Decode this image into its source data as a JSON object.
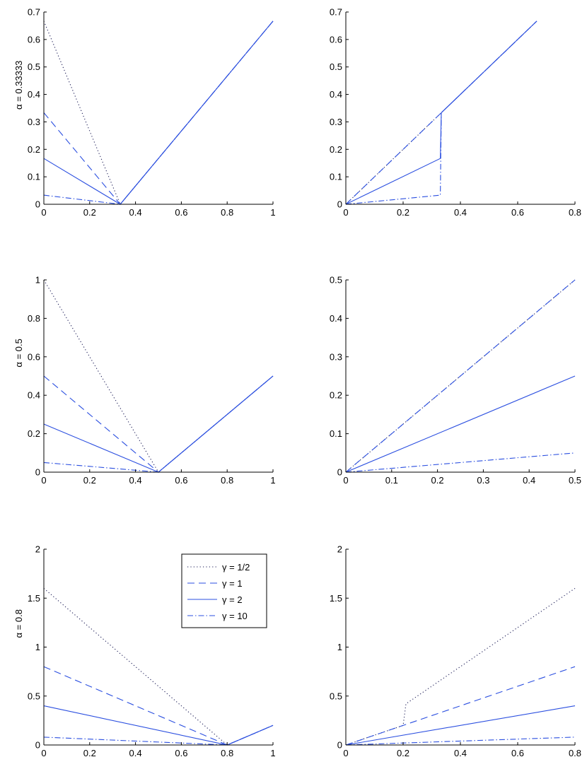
{
  "chart_data": [
    {
      "type": "line",
      "row_label": "α = 0.33333",
      "xlim": [
        0,
        1
      ],
      "ylim": [
        0,
        0.7
      ],
      "xticks": [
        "0",
        "0.2",
        "0.4",
        "0.6",
        "0.8",
        "1"
      ],
      "yticks": [
        "0",
        "0.1",
        "0.2",
        "0.3",
        "0.4",
        "0.5",
        "0.6",
        "0.7"
      ],
      "series": [
        {
          "name": "γ = 1/2",
          "style": "dotted",
          "points": [
            [
              0,
              0.6667
            ],
            [
              0.3333,
              0
            ],
            [
              1,
              0.6667
            ]
          ]
        },
        {
          "name": "γ = 1",
          "style": "dashed",
          "points": [
            [
              0,
              0.3333
            ],
            [
              0.3333,
              0
            ],
            [
              1,
              0.6667
            ]
          ]
        },
        {
          "name": "γ = 2",
          "style": "solid",
          "points": [
            [
              0,
              0.1667
            ],
            [
              0.3333,
              0
            ],
            [
              1,
              0.6667
            ]
          ]
        },
        {
          "name": "γ = 10",
          "style": "dashdot",
          "points": [
            [
              0,
              0.0333
            ],
            [
              0.3333,
              0
            ],
            [
              1,
              0.6667
            ]
          ]
        }
      ]
    },
    {
      "type": "line",
      "xlim": [
        0,
        0.8
      ],
      "ylim": [
        0,
        0.7
      ],
      "xticks": [
        "0",
        "0.2",
        "0.4",
        "0.6",
        "0.8"
      ],
      "yticks": [
        "0",
        "0.1",
        "0.2",
        "0.3",
        "0.4",
        "0.5",
        "0.6",
        "0.7"
      ],
      "series": [
        {
          "name": "γ = 1/2",
          "style": "dotted",
          "points": [
            [
              0,
              0
            ],
            [
              0.3333,
              0.3333
            ],
            [
              0.6667,
              0.6667
            ]
          ]
        },
        {
          "name": "γ = 1",
          "style": "dashed",
          "points": [
            [
              0,
              0
            ],
            [
              0.3333,
              0.3333
            ],
            [
              0.6667,
              0.6667
            ]
          ]
        },
        {
          "name": "γ = 2",
          "style": "solid",
          "points": [
            [
              0,
              0
            ],
            [
              0.33,
              0.1667
            ],
            [
              0.3333,
              0.3333
            ],
            [
              0.6667,
              0.6667
            ]
          ]
        },
        {
          "name": "γ = 10",
          "style": "dashdot",
          "points": [
            [
              0,
              0
            ],
            [
              0.33,
              0.0333
            ],
            [
              0.3333,
              0.3333
            ],
            [
              0.6667,
              0.6667
            ]
          ]
        }
      ]
    },
    {
      "type": "line",
      "row_label": "α = 0.5",
      "xlim": [
        0,
        1
      ],
      "ylim": [
        0,
        1
      ],
      "xticks": [
        "0",
        "0.2",
        "0.4",
        "0.6",
        "0.8",
        "1"
      ],
      "yticks": [
        "0",
        "0.2",
        "0.4",
        "0.6",
        "0.8",
        "1"
      ],
      "series": [
        {
          "name": "γ = 1/2",
          "style": "dotted",
          "points": [
            [
              0,
              1
            ],
            [
              0.5,
              0
            ],
            [
              1,
              0.5
            ]
          ]
        },
        {
          "name": "γ = 1",
          "style": "dashed",
          "points": [
            [
              0,
              0.5
            ],
            [
              0.5,
              0
            ],
            [
              1,
              0.5
            ]
          ]
        },
        {
          "name": "γ = 2",
          "style": "solid",
          "points": [
            [
              0,
              0.25
            ],
            [
              0.5,
              0
            ],
            [
              1,
              0.5
            ]
          ]
        },
        {
          "name": "γ = 10",
          "style": "dashdot",
          "points": [
            [
              0,
              0.05
            ],
            [
              0.5,
              0
            ],
            [
              1,
              0.5
            ]
          ]
        }
      ]
    },
    {
      "type": "line",
      "xlim": [
        0,
        0.5
      ],
      "ylim": [
        0,
        0.5
      ],
      "xticks": [
        "0",
        "0.1",
        "0.2",
        "0.3",
        "0.4",
        "0.5"
      ],
      "yticks": [
        "0",
        "0.1",
        "0.2",
        "0.3",
        "0.4",
        "0.5"
      ],
      "series": [
        {
          "name": "γ = 1/2",
          "style": "dotted",
          "points": [
            [
              0,
              0
            ],
            [
              0.5,
              0.5
            ]
          ]
        },
        {
          "name": "γ = 1",
          "style": "dashed",
          "points": [
            [
              0,
              0
            ],
            [
              0.5,
              0.5
            ]
          ]
        },
        {
          "name": "γ = 2",
          "style": "solid",
          "points": [
            [
              0,
              0
            ],
            [
              0.5,
              0.25
            ]
          ]
        },
        {
          "name": "γ = 10",
          "style": "dashdot",
          "points": [
            [
              0,
              0
            ],
            [
              0.5,
              0.05
            ]
          ]
        }
      ]
    },
    {
      "type": "line",
      "row_label": "α = 0.8",
      "xlim": [
        0,
        1
      ],
      "ylim": [
        0,
        2
      ],
      "xticks": [
        "0",
        "0.2",
        "0.4",
        "0.6",
        "0.8",
        "1"
      ],
      "yticks": [
        "0",
        "0.5",
        "1",
        "1.5",
        "2"
      ],
      "legend": {
        "position": "top-right",
        "entries": [
          "γ = 1/2",
          "γ = 1",
          "γ = 2",
          "γ = 10"
        ]
      },
      "series": [
        {
          "name": "γ = 1/2",
          "style": "dotted",
          "points": [
            [
              0,
              1.6
            ],
            [
              0.8,
              0
            ],
            [
              1,
              0.2
            ]
          ]
        },
        {
          "name": "γ = 1",
          "style": "dashed",
          "points": [
            [
              0,
              0.8
            ],
            [
              0.8,
              0
            ],
            [
              1,
              0.2
            ]
          ]
        },
        {
          "name": "γ = 2",
          "style": "solid",
          "points": [
            [
              0,
              0.4
            ],
            [
              0.8,
              0
            ],
            [
              1,
              0.2
            ]
          ]
        },
        {
          "name": "γ = 10",
          "style": "dashdot",
          "points": [
            [
              0,
              0.08
            ],
            [
              0.8,
              0
            ],
            [
              1,
              0.2
            ]
          ]
        }
      ]
    },
    {
      "type": "line",
      "xlim": [
        0,
        0.8
      ],
      "ylim": [
        0,
        2
      ],
      "xticks": [
        "0",
        "0.2",
        "0.4",
        "0.6",
        "0.8"
      ],
      "yticks": [
        "0",
        "0.5",
        "1",
        "1.5",
        "2"
      ],
      "series": [
        {
          "name": "γ = 1/2",
          "style": "dotted",
          "points": [
            [
              0,
              0
            ],
            [
              0.2,
              0.2
            ],
            [
              0.21,
              0.42
            ],
            [
              0.8,
              1.6
            ]
          ]
        },
        {
          "name": "γ = 1",
          "style": "dashed",
          "points": [
            [
              0,
              0
            ],
            [
              0.8,
              0.8
            ]
          ]
        },
        {
          "name": "γ = 2",
          "style": "solid",
          "points": [
            [
              0,
              0
            ],
            [
              0.8,
              0.4
            ]
          ]
        },
        {
          "name": "γ = 10",
          "style": "dashdot",
          "points": [
            [
              0,
              0
            ],
            [
              0.8,
              0.08
            ]
          ]
        }
      ]
    }
  ]
}
